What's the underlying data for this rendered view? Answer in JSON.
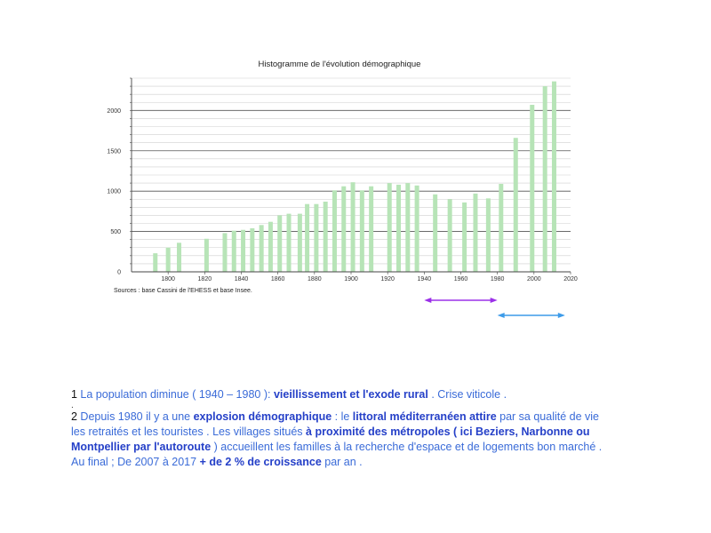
{
  "chart_data": {
    "type": "bar",
    "title": "Histogramme de l'évolution démographique",
    "source": "Sources : base Cassini de l'EHESS et base Insee.",
    "xlim": [
      1780,
      2020
    ],
    "ylim": [
      0,
      2400
    ],
    "x_ticks": [
      1800,
      1820,
      1840,
      1860,
      1880,
      1900,
      1920,
      1940,
      1960,
      1980,
      2000,
      2020
    ],
    "y_ticks": [
      0,
      500,
      1000,
      1500,
      2000
    ],
    "grid": true,
    "bar_color": "#b7e4b7",
    "points": [
      {
        "year": 1793,
        "value": 230
      },
      {
        "year": 1800,
        "value": 300
      },
      {
        "year": 1806,
        "value": 360
      },
      {
        "year": 1821,
        "value": 410
      },
      {
        "year": 1831,
        "value": 480
      },
      {
        "year": 1836,
        "value": 510
      },
      {
        "year": 1841,
        "value": 520
      },
      {
        "year": 1846,
        "value": 540
      },
      {
        "year": 1851,
        "value": 580
      },
      {
        "year": 1856,
        "value": 620
      },
      {
        "year": 1861,
        "value": 700
      },
      {
        "year": 1866,
        "value": 720
      },
      {
        "year": 1872,
        "value": 720
      },
      {
        "year": 1876,
        "value": 840
      },
      {
        "year": 1881,
        "value": 840
      },
      {
        "year": 1886,
        "value": 870
      },
      {
        "year": 1891,
        "value": 1010
      },
      {
        "year": 1896,
        "value": 1060
      },
      {
        "year": 1901,
        "value": 1110
      },
      {
        "year": 1906,
        "value": 1010
      },
      {
        "year": 1911,
        "value": 1060
      },
      {
        "year": 1921,
        "value": 1100
      },
      {
        "year": 1926,
        "value": 1080
      },
      {
        "year": 1931,
        "value": 1100
      },
      {
        "year": 1936,
        "value": 1070
      },
      {
        "year": 1946,
        "value": 960
      },
      {
        "year": 1954,
        "value": 900
      },
      {
        "year": 1962,
        "value": 860
      },
      {
        "year": 1968,
        "value": 970
      },
      {
        "year": 1975,
        "value": 910
      },
      {
        "year": 1982,
        "value": 1090
      },
      {
        "year": 1990,
        "value": 1660
      },
      {
        "year": 1999,
        "value": 2070
      },
      {
        "year": 2006,
        "value": 2300
      },
      {
        "year": 2011,
        "value": 2360
      }
    ],
    "arrows": [
      {
        "from": 1940,
        "to": 1980,
        "color": "#9b30e8",
        "heads": "both"
      },
      {
        "from": 1980,
        "to": 2017,
        "color": "#3d9be9",
        "heads": "both"
      }
    ]
  },
  "notes": {
    "n1": {
      "num": "1",
      "a": " La population diminue ( 1940 – 1980 ): ",
      "b": "vieillissement et l'exode rural",
      "c": " . Crise viticole .",
      "tail": "."
    },
    "n2": {
      "num": "2",
      "a": " Depuis 1980 il y a une ",
      "b": "explosion démographique",
      "c": " : le ",
      "d": "littoral méditerranéen attire",
      "e": " par sa qualité de vie les retraités et les touristes . Les villages situés ",
      "f": "à proximité des métropoles ( ici Beziers, Narbonne ou Montpellier par l'autoroute",
      "g": " )  accueillent  les familles à la recherche d'espace et de logements bon marché .",
      "h": " Au final ;  De 2007 à 2017 ",
      "i": "+ de 2 % de croissance",
      "j": " par an ."
    }
  }
}
